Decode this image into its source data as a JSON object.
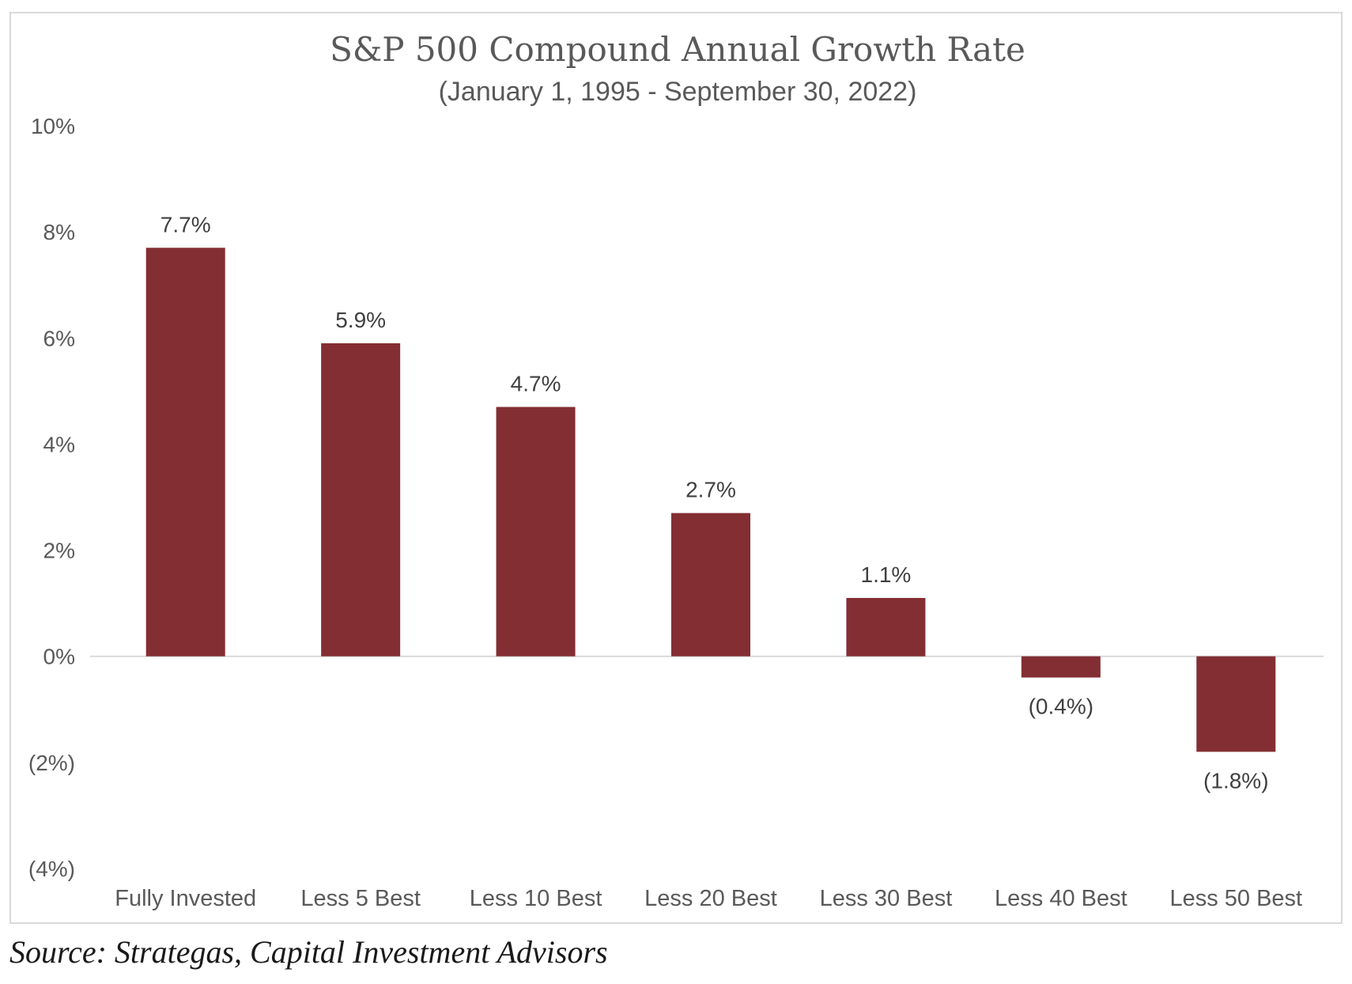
{
  "chart_data": {
    "type": "bar",
    "title": "S&P 500 Compound Annual Growth Rate",
    "subtitle": "(January 1, 1995 - September 30, 2022)",
    "categories": [
      "Fully Invested",
      "Less 5 Best",
      "Less 10 Best",
      "Less 20 Best",
      "Less 30 Best",
      "Less 40 Best",
      "Less 50 Best"
    ],
    "values": [
      7.7,
      5.9,
      4.7,
      2.7,
      1.1,
      -0.4,
      -1.8
    ],
    "data_labels": [
      "7.7%",
      "5.9%",
      "4.7%",
      "2.7%",
      "1.1%",
      "(0.4%)",
      "(1.8%)"
    ],
    "y_ticks": [
      10,
      8,
      6,
      4,
      2,
      0,
      -2,
      -4
    ],
    "y_tick_labels": [
      "10%",
      "8%",
      "6%",
      "4%",
      "2%",
      "0%",
      "(2%)",
      "(4%)"
    ],
    "ylim": [
      -4,
      10
    ],
    "xlabel": "",
    "ylabel": "",
    "grid": false,
    "legend": "none",
    "bar_color": "#832e33",
    "zero_line_color": "#d9d9d9"
  },
  "source": "Source: Strategas, Capital Investment Advisors"
}
